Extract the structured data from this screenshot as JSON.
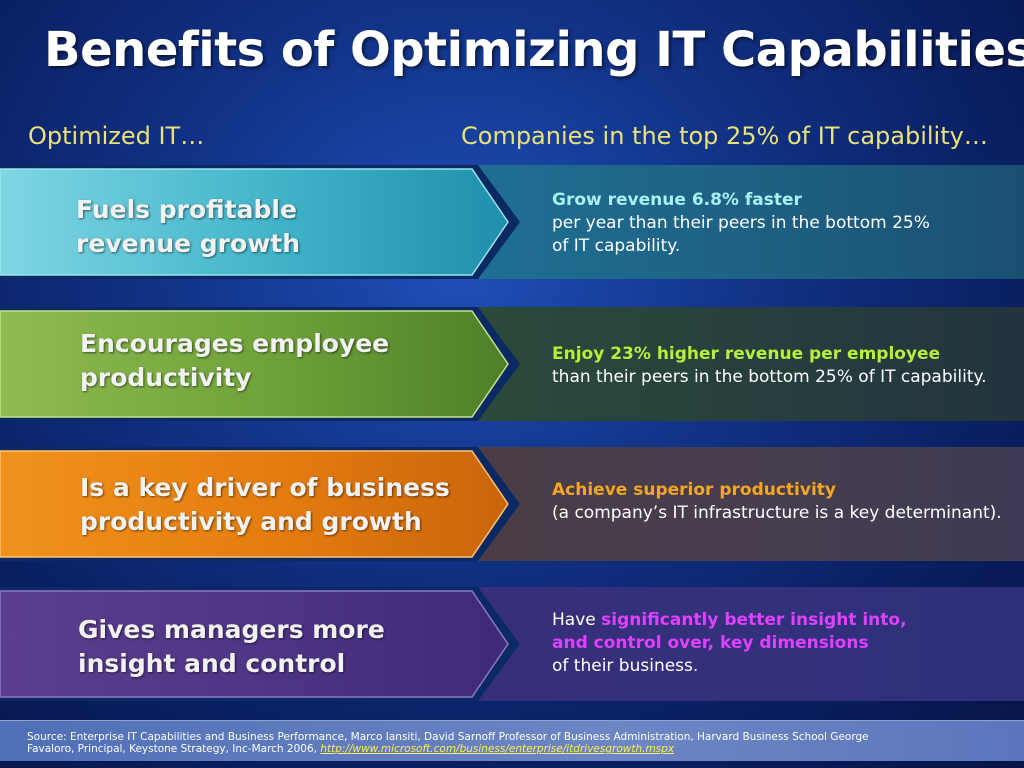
{
  "title": "Benefits of Optimizing IT Capabilities",
  "columns": {
    "left": "Optimized IT…",
    "right": "Companies in the top 25% of IT capability…"
  },
  "rows": [
    {
      "left_line1": "Fuels profitable",
      "left_line2": "revenue growth",
      "highlight": "Grow revenue 6.8% faster",
      "text_line1": "per year than their peers in the bottom 25%",
      "text_line2": "of IT capability.",
      "highlight_color": "#a9f0f5"
    },
    {
      "left_line1": "Encourages employee",
      "left_line2": "productivity",
      "highlight": "Enjoy 23% higher revenue per employee",
      "text_line1": "than their peers in the bottom 25% of IT capability.",
      "highlight_color": "#b6f03c"
    },
    {
      "left_line1": "Is a key driver of business",
      "left_line2": "productivity and growth",
      "highlight": "Achieve superior productivity",
      "text_line1": "(a company’s IT infrastructure is a key determinant).",
      "highlight_color": "#f5a623"
    },
    {
      "left_line1": "Gives managers more",
      "left_line2": "insight and control",
      "prefix": "Have ",
      "highlight": "significantly better insight into,",
      "highlight_line2": "and control over, key dimensions",
      "text_line1": "of their business.",
      "highlight_color": "#e040ff"
    }
  ],
  "footer": {
    "source": "Source: Enterprise IT Capabilities and Business Performance, Marco Iansiti, David Sarnoff Professor of Business Administration, Harvard Business School George Favaloro, Principal, Keystone Strategy, Inc-March 2006, ",
    "link": "http://www.microsoft.com/business/enterprise/itdrivesgrowth.mspx"
  }
}
